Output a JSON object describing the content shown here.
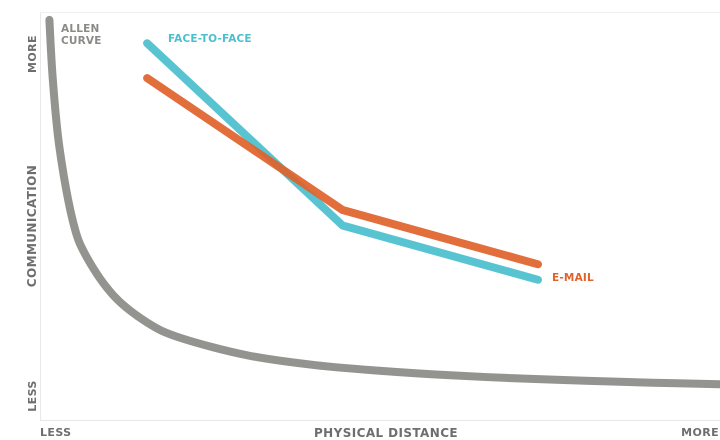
{
  "chart_data": {
    "type": "line",
    "title": "",
    "xlabel": "PHYSICAL DISTANCE",
    "ylabel": "COMMUNICATION",
    "x_ticks": {
      "low": "LESS",
      "high": "MORE"
    },
    "y_ticks": {
      "low": "LESS",
      "high": "MORE"
    },
    "xlim": [
      0,
      100
    ],
    "ylim": [
      0,
      100
    ],
    "grid": false,
    "series": [
      {
        "name": "ALLEN CURVE",
        "color": "#8a8a86",
        "curve": "reciprocal",
        "x": [
          0.5,
          1,
          2,
          4,
          6,
          10,
          15,
          20,
          30,
          40,
          50,
          60,
          70,
          80,
          90,
          100
        ],
        "y": [
          99,
          84,
          66,
          47,
          38,
          28,
          21,
          17,
          12.5,
          10,
          8.5,
          7.4,
          6.6,
          6,
          5.5,
          5.1
        ]
      },
      {
        "name": "FACE-TO-FACE",
        "color": "#4bbfcd",
        "x": [
          15,
          44,
          73
        ],
        "y": [
          93,
          46,
          32
        ]
      },
      {
        "name": "E-MAIL",
        "color": "#e0622b",
        "x": [
          15,
          44,
          73
        ],
        "y": [
          84,
          50,
          36
        ]
      }
    ]
  }
}
